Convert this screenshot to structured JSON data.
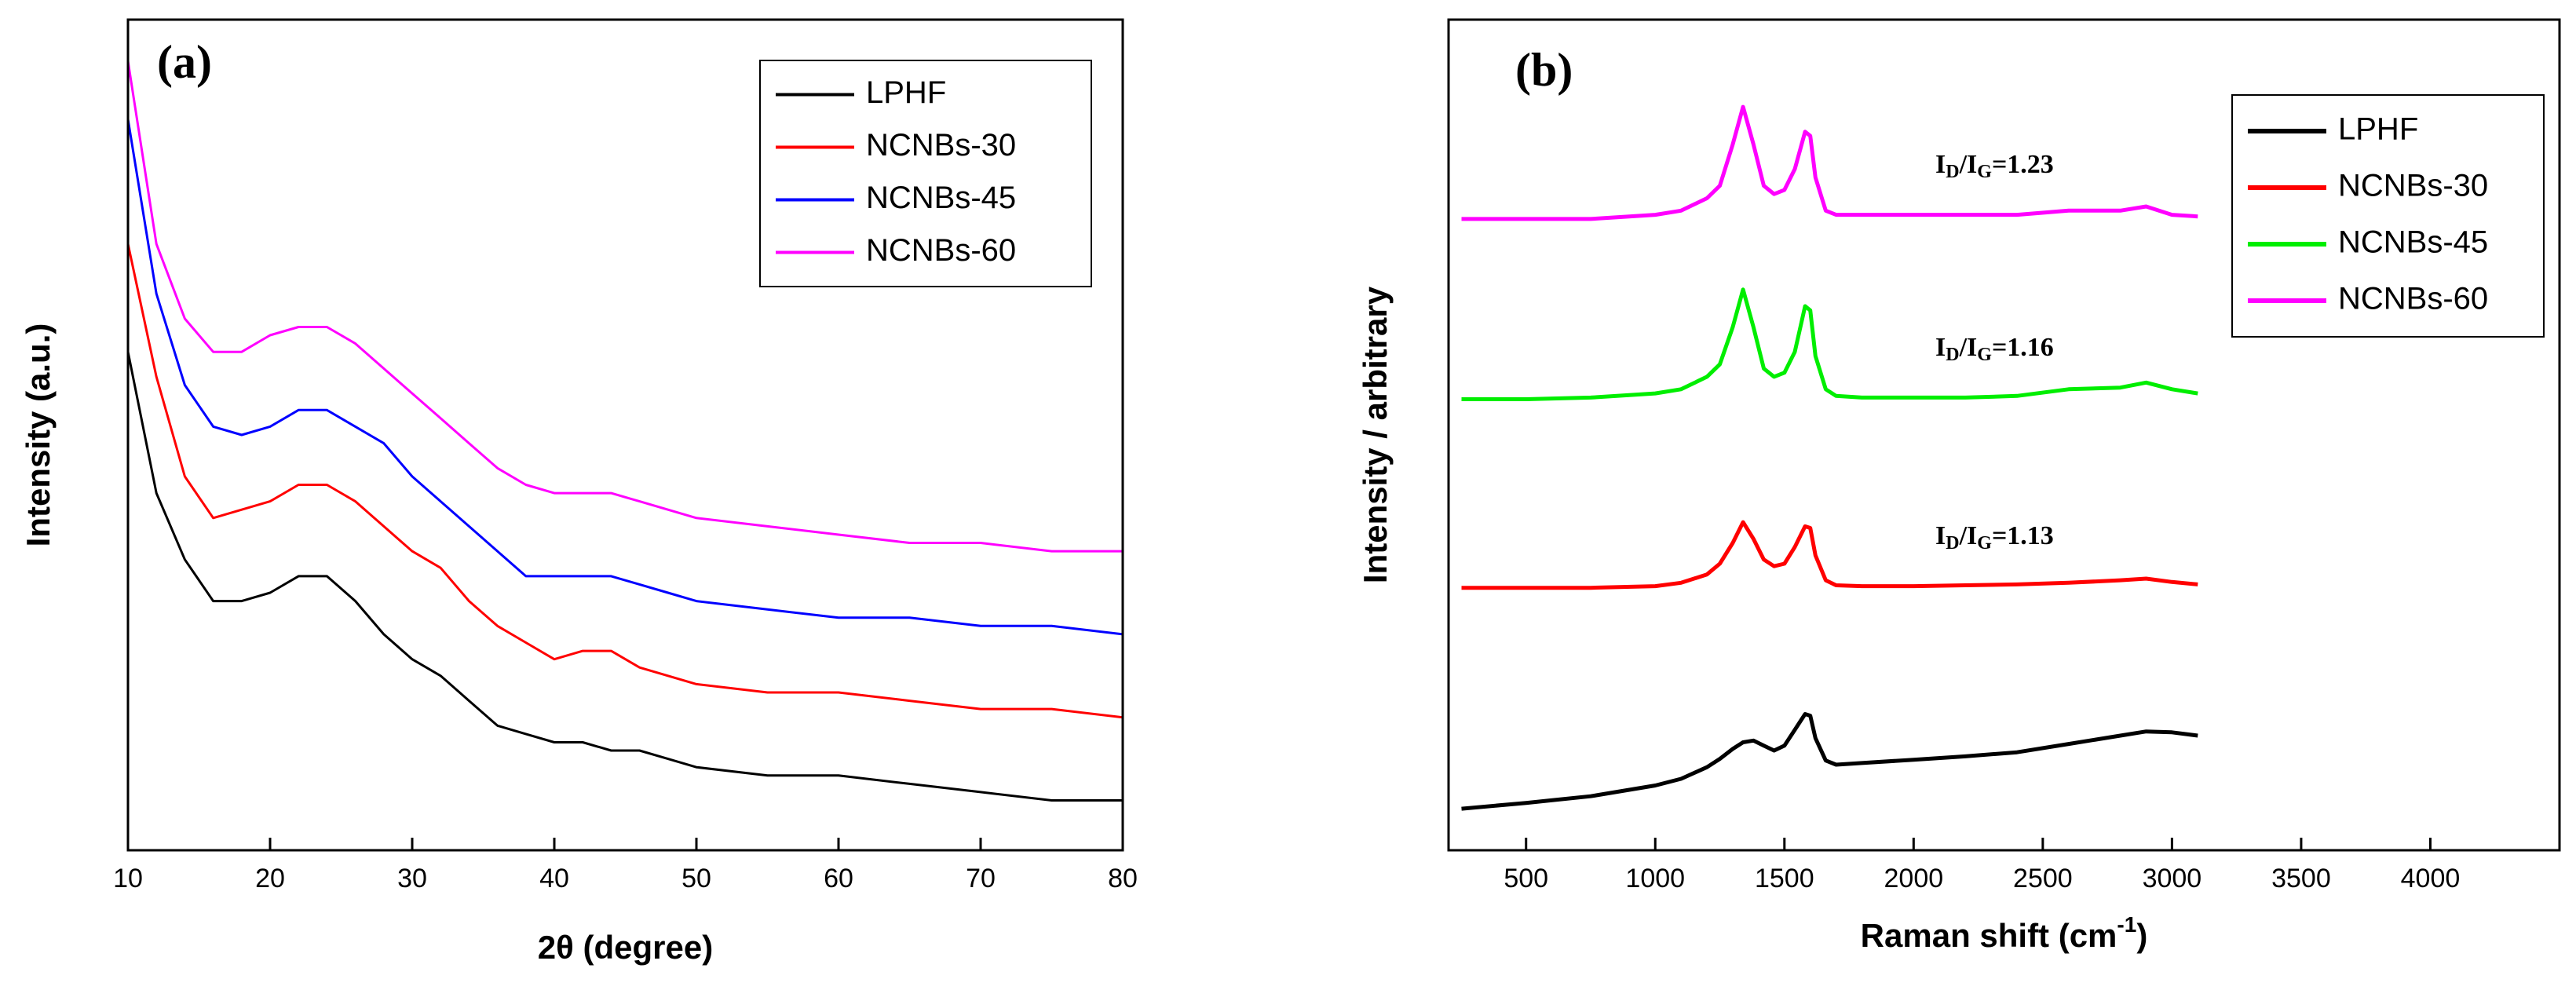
{
  "chart_data": [
    {
      "type": "line",
      "title": "(a)",
      "xlabel": [
        "2θ (degree)"
      ],
      "ylabel": "Intensity (a.u.)",
      "xlim": [
        10,
        80
      ],
      "xticks": [
        10,
        20,
        30,
        40,
        50,
        60,
        70,
        80
      ],
      "ylim": [
        0,
        100
      ],
      "legend": "upper right",
      "x": [
        10,
        12,
        14,
        16,
        18,
        20,
        22,
        24,
        26,
        28,
        30,
        32,
        34,
        36,
        38,
        40,
        42,
        44,
        46,
        48,
        50,
        55,
        60,
        65,
        70,
        75,
        80
      ],
      "series": [
        {
          "name": "LPHF",
          "color": "#000000",
          "values": [
            60,
            43,
            35,
            30,
            30,
            31,
            33,
            33,
            30,
            26,
            23,
            21,
            18,
            15,
            14,
            13,
            13,
            12,
            12,
            11,
            10,
            9,
            9,
            8,
            7,
            6,
            6
          ]
        },
        {
          "name": "NCNBs-30",
          "color": "#ff0000",
          "values": [
            73,
            57,
            45,
            40,
            41,
            42,
            44,
            44,
            42,
            39,
            36,
            34,
            30,
            27,
            25,
            23,
            24,
            24,
            22,
            21,
            20,
            19,
            19,
            18,
            17,
            17,
            16
          ]
        },
        {
          "name": "NCNBs-45",
          "color": "#0000ff",
          "values": [
            88,
            67,
            56,
            51,
            50,
            51,
            53,
            53,
            51,
            49,
            45,
            42,
            39,
            36,
            33,
            33,
            33,
            33,
            32,
            31,
            30,
            29,
            28,
            28,
            27,
            27,
            26
          ]
        },
        {
          "name": "NCNBs-60",
          "color": "#ff00ff",
          "values": [
            95,
            73,
            64,
            60,
            60,
            62,
            63,
            63,
            61,
            58,
            55,
            52,
            49,
            46,
            44,
            43,
            43,
            43,
            42,
            41,
            40,
            39,
            38,
            37,
            37,
            36,
            36
          ]
        }
      ]
    },
    {
      "type": "line",
      "title": "(b)",
      "xlabel": [
        "Raman shift (cm",
        "-1",
        ")"
      ],
      "ylabel": "Intensity / arbitrary",
      "xlim": [
        200,
        4500
      ],
      "xticks": [
        500,
        1000,
        1500,
        2000,
        2500,
        3000,
        3500,
        4000
      ],
      "ylim": [
        0,
        100
      ],
      "legend": "upper right",
      "annotations": [
        [
          "I",
          "D",
          "/I",
          "G",
          "=1.23"
        ],
        [
          "I",
          "D",
          "/I",
          "G",
          "=1.16"
        ],
        [
          "I",
          "D",
          "/I",
          "G",
          "=1.13"
        ]
      ],
      "x": [
        250,
        500,
        750,
        1000,
        1100,
        1200,
        1250,
        1300,
        1340,
        1380,
        1420,
        1460,
        1500,
        1540,
        1580,
        1600,
        1620,
        1660,
        1700,
        1800,
        2000,
        2200,
        2400,
        2600,
        2800,
        2900,
        3000,
        3100
      ],
      "series": [
        {
          "name": "LPHF",
          "color": "#000000",
          "values": [
            5,
            5.7,
            6.5,
            7.8,
            8.6,
            10,
            11,
            12.2,
            13,
            13.2,
            12.6,
            12,
            12.6,
            14.5,
            16.4,
            16.2,
            13.5,
            10.8,
            10.3,
            10.5,
            10.9,
            11.3,
            11.8,
            12.8,
            13.8,
            14.3,
            14.2,
            13.8
          ]
        },
        {
          "name": "NCNBs-30",
          "color": "#ff0000",
          "values": [
            31.6,
            31.6,
            31.6,
            31.8,
            32.2,
            33.2,
            34.5,
            37,
            39.5,
            37.5,
            35,
            34.2,
            34.5,
            36.5,
            39,
            38.8,
            35.5,
            32.5,
            31.9,
            31.8,
            31.8,
            31.9,
            32,
            32.2,
            32.5,
            32.7,
            32.3,
            32
          ]
        },
        {
          "name": "NCNBs-45",
          "color": "#00ee00",
          "values": [
            54.3,
            54.3,
            54.5,
            55,
            55.5,
            57,
            58.5,
            63,
            67.5,
            63,
            58,
            57,
            57.5,
            60,
            65.5,
            65,
            59.5,
            55.5,
            54.7,
            54.5,
            54.5,
            54.5,
            54.7,
            55.5,
            55.7,
            56.3,
            55.5,
            55
          ]
        },
        {
          "name": "NCNBs-60",
          "color": "#ff00ff",
          "values": [
            76,
            76,
            76,
            76.5,
            77,
            78.5,
            80,
            85,
            89.5,
            85,
            80,
            79,
            79.5,
            82,
            86.5,
            86,
            81,
            77,
            76.5,
            76.5,
            76.5,
            76.5,
            76.5,
            77,
            77,
            77.5,
            76.5,
            76.3
          ]
        }
      ]
    }
  ]
}
